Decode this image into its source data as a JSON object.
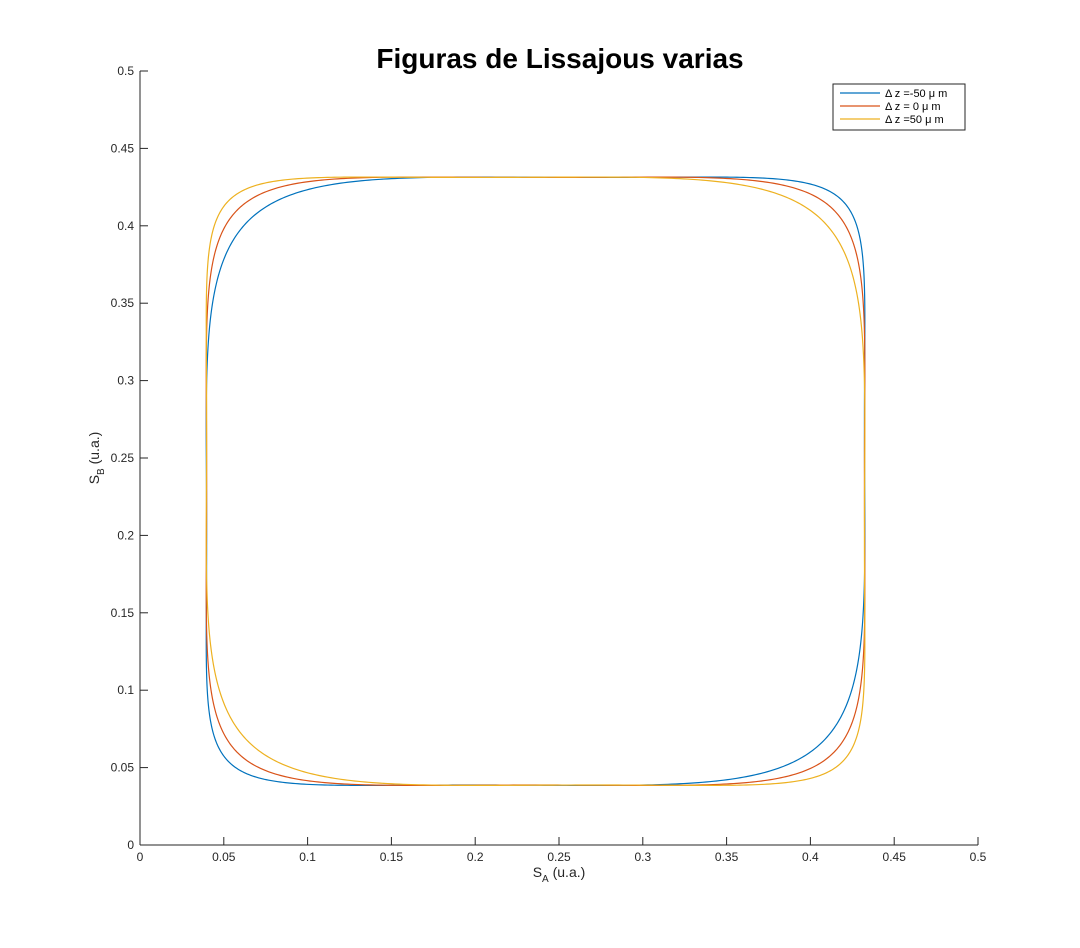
{
  "chart_data": {
    "type": "line",
    "title": "Figuras de Lissajous varias",
    "xlabel": {
      "main": "S",
      "sub": "A",
      "unit": " (u.a.)"
    },
    "ylabel": {
      "main": "S",
      "sub": "B",
      "unit": " (u.a.)"
    },
    "xlim": [
      0,
      0.5
    ],
    "ylim": [
      0,
      0.5
    ],
    "xticks": [
      0,
      0.05,
      0.1,
      0.15,
      0.2,
      0.25,
      0.3,
      0.35,
      0.4,
      0.45,
      0.5
    ],
    "yticks": [
      0,
      0.05,
      0.1,
      0.15,
      0.2,
      0.25,
      0.3,
      0.35,
      0.4,
      0.45,
      0.5
    ],
    "xtick_labels": [
      "0",
      "0.05",
      "0.1",
      "0.15",
      "0.2",
      "0.25",
      "0.3",
      "0.35",
      "0.4",
      "0.45",
      "0.5"
    ],
    "ytick_labels": [
      "0",
      "0.05",
      "0.1",
      "0.15",
      "0.2",
      "0.25",
      "0.3",
      "0.35",
      "0.4",
      "0.45",
      "0.5"
    ],
    "grid": false,
    "legend_position": "top-right",
    "curve": {
      "x_center": 0.236,
      "y_center": 0.235,
      "x_amplitude": 0.223,
      "y_amplitude": 0.223,
      "shape_harmonic_3": 0.12
    },
    "series": [
      {
        "name": "Δ z =-50 μ m",
        "color": "#0072BD",
        "phase_deg": -7
      },
      {
        "name": "Δ z = 0 μ m",
        "color": "#D95319",
        "phase_deg": 0
      },
      {
        "name": "Δ z =50 μ m",
        "color": "#EDB120",
        "phase_deg": 7
      }
    ]
  }
}
